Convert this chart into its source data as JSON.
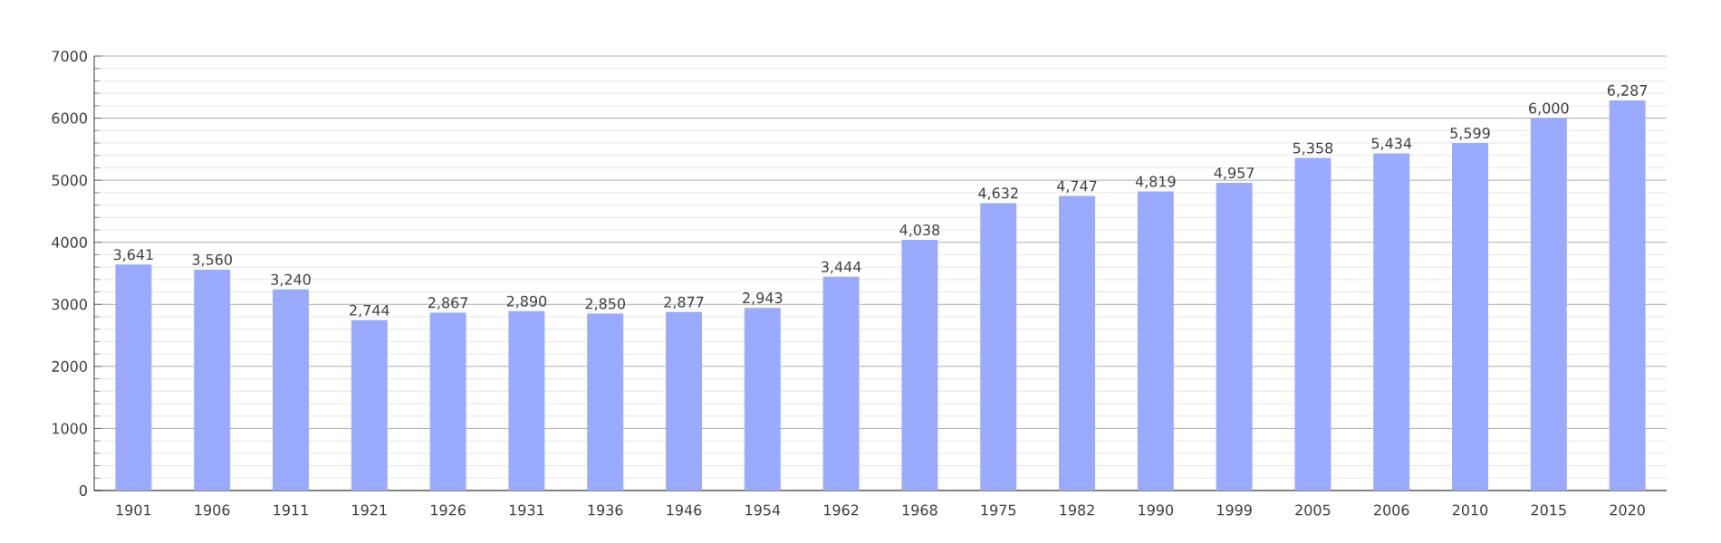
{
  "chart_data": {
    "type": "bar",
    "categories": [
      "1901",
      "1906",
      "1911",
      "1921",
      "1926",
      "1931",
      "1936",
      "1946",
      "1954",
      "1962",
      "1968",
      "1975",
      "1982",
      "1990",
      "1999",
      "2005",
      "2006",
      "2010",
      "2015",
      "2020"
    ],
    "values": [
      3641,
      3560,
      3240,
      2744,
      2867,
      2890,
      2850,
      2877,
      2943,
      3444,
      4038,
      4632,
      4747,
      4819,
      4957,
      5358,
      5434,
      5599,
      6000,
      6287
    ],
    "value_labels": [
      "3,641",
      "3,560",
      "3,240",
      "2,744",
      "2,867",
      "2,890",
      "2,850",
      "2,877",
      "2,943",
      "3,444",
      "4,038",
      "4,632",
      "4,747",
      "4,819",
      "4,957",
      "5,358",
      "5,434",
      "5,599",
      "6,000",
      "6,287"
    ],
    "color": "#99aaff",
    "ylim": [
      0,
      7000
    ],
    "yticks": [
      0,
      1000,
      2000,
      3000,
      4000,
      5000,
      6000,
      7000
    ],
    "grid": "y"
  }
}
